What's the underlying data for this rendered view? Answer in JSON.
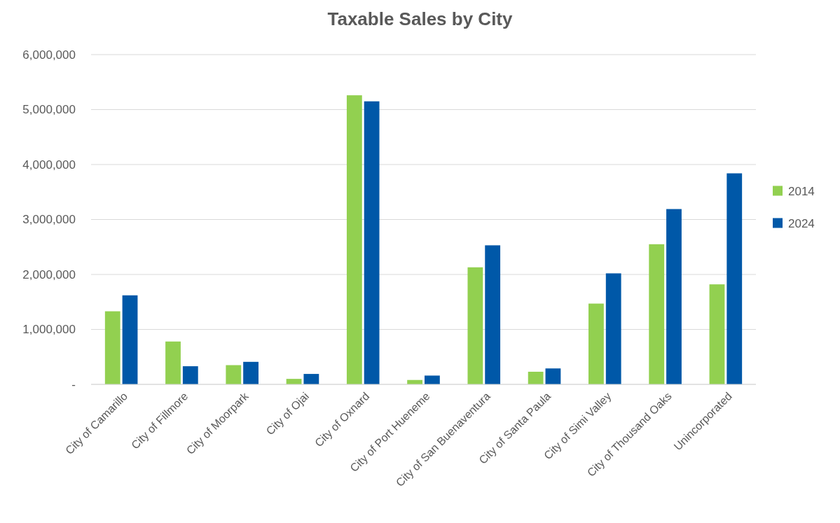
{
  "chart_data": {
    "type": "bar",
    "title": "Taxable Sales by City",
    "categories": [
      "City of Camarillo",
      "City of Fillmore",
      "City of Moorpark",
      "City of Ojai",
      "City of Oxnard",
      "City of Port Hueneme",
      "City of San Buenaventura",
      "City of Santa Paula",
      "City of Simi Valley",
      "City of Thousand Oaks",
      "Unincorporated"
    ],
    "series": [
      {
        "name": "2014",
        "color": "#92d050",
        "values": [
          1330000,
          780000,
          350000,
          100000,
          5260000,
          80000,
          2130000,
          230000,
          1470000,
          2550000,
          1820000
        ]
      },
      {
        "name": "2024",
        "color": "#0058a8",
        "values": [
          1620000,
          330000,
          410000,
          190000,
          5150000,
          160000,
          2530000,
          290000,
          2020000,
          3190000,
          3840000
        ]
      }
    ],
    "ylim": [
      0,
      6000000
    ],
    "yticks": [
      {
        "value": 0,
        "label": "-"
      },
      {
        "value": 1000000,
        "label": "1,000,000"
      },
      {
        "value": 2000000,
        "label": "2,000,000"
      },
      {
        "value": 3000000,
        "label": "3,000,000"
      },
      {
        "value": 4000000,
        "label": "4,000,000"
      },
      {
        "value": 5000000,
        "label": "5,000,000"
      },
      {
        "value": 6000000,
        "label": "6,000,000"
      }
    ],
    "grid": "y",
    "legend": "right"
  }
}
